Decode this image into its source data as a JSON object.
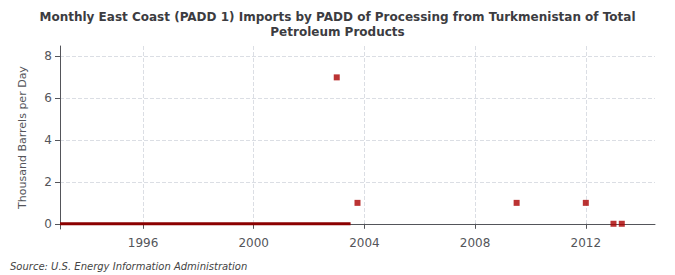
{
  "chart_data": {
    "type": "scatter",
    "title": "Monthly East Coast (PADD 1) Imports by PADD of Processing from Turkmenistan of Total\nPetroleum Products",
    "ylabel": "Thousand Barrels per Day",
    "annotation": "Source: U.S. Energy Information Administration",
    "grid": true,
    "xlim": [
      1993.0,
      2014.5
    ],
    "xticks": [
      1996,
      2000,
      2004,
      2008,
      2012
    ],
    "ylim": [
      -0.25,
      8.5
    ],
    "yticks": [
      0,
      2,
      4,
      6,
      8
    ],
    "series": [
      {
        "type": "line",
        "color": "#8b0000",
        "x": [
          1993.0,
          2003.5
        ],
        "values": [
          0,
          0
        ]
      },
      {
        "type": "scatter",
        "color": "#aa0000",
        "marker": "square",
        "x": [
          2003.0,
          2003.75,
          2009.5,
          2012.0,
          2013.0,
          2013.3
        ],
        "values": [
          7.0,
          1.0,
          1.0,
          1.0,
          0.0,
          0.0
        ]
      }
    ]
  }
}
